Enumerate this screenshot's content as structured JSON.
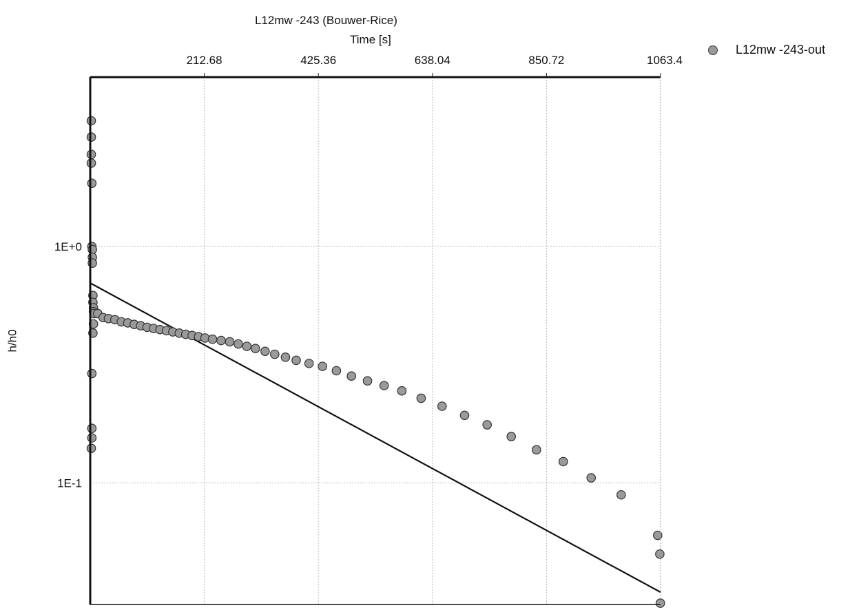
{
  "chart_data": {
    "type": "scatter",
    "title": "L12mw -243  (Bouwer-Rice)",
    "xlabel": "Time [s]",
    "ylabel": "h/h0",
    "x_scale": "linear",
    "y_scale": "log",
    "xlim": [
      0,
      1063.4
    ],
    "ylim": [
      0.0306,
      5.2
    ],
    "x_ticks": [
      212.68,
      425.36,
      638.04,
      850.72,
      1063.4
    ],
    "x_tick_labels": [
      "212.68",
      "425.36",
      "638.04",
      "850.72",
      "1063.4"
    ],
    "y_ticks": [
      1,
      0.1
    ],
    "y_tick_labels": [
      "1E+0",
      "1E-1"
    ],
    "x_axis_position": "top",
    "grid": true,
    "legend": {
      "position": "top-right"
    },
    "series": [
      {
        "name": "L12mw -243-out",
        "marker": "circle",
        "color": "#9a9a9a",
        "points": [
          [
            2,
            3.4
          ],
          [
            2,
            2.9
          ],
          [
            2,
            2.45
          ],
          [
            2,
            2.25
          ],
          [
            3,
            1.85
          ],
          [
            3,
            1.0
          ],
          [
            4,
            0.97
          ],
          [
            4,
            0.9
          ],
          [
            4,
            0.85
          ],
          [
            5,
            0.62
          ],
          [
            5,
            0.58
          ],
          [
            6,
            0.55
          ],
          [
            6,
            0.53
          ],
          [
            7,
            0.52
          ],
          [
            6,
            0.47
          ],
          [
            5,
            0.43
          ],
          [
            3,
            0.29
          ],
          [
            3,
            0.17
          ],
          [
            3,
            0.155
          ],
          [
            2,
            0.14
          ],
          [
            14,
            0.52
          ],
          [
            24,
            0.5
          ],
          [
            34,
            0.495
          ],
          [
            46,
            0.49
          ],
          [
            58,
            0.48
          ],
          [
            70,
            0.475
          ],
          [
            82,
            0.468
          ],
          [
            94,
            0.462
          ],
          [
            106,
            0.455
          ],
          [
            118,
            0.45
          ],
          [
            130,
            0.445
          ],
          [
            142,
            0.44
          ],
          [
            154,
            0.435
          ],
          [
            166,
            0.43
          ],
          [
            178,
            0.425
          ],
          [
            190,
            0.42
          ],
          [
            202,
            0.415
          ],
          [
            214,
            0.41
          ],
          [
            228,
            0.405
          ],
          [
            244,
            0.4
          ],
          [
            260,
            0.395
          ],
          [
            276,
            0.387
          ],
          [
            292,
            0.378
          ],
          [
            308,
            0.37
          ],
          [
            326,
            0.36
          ],
          [
            344,
            0.35
          ],
          [
            364,
            0.34
          ],
          [
            384,
            0.33
          ],
          [
            408,
            0.32
          ],
          [
            433,
            0.311
          ],
          [
            459,
            0.298
          ],
          [
            487,
            0.283
          ],
          [
            517,
            0.27
          ],
          [
            548,
            0.258
          ],
          [
            581,
            0.245
          ],
          [
            617,
            0.228
          ],
          [
            656,
            0.211
          ],
          [
            698,
            0.193
          ],
          [
            740,
            0.176
          ],
          [
            785,
            0.157
          ],
          [
            832,
            0.138
          ],
          [
            882,
            0.123
          ],
          [
            934,
            0.105
          ],
          [
            990,
            0.089
          ],
          [
            1058,
            0.06
          ],
          [
            1062,
            0.05
          ],
          [
            1063,
            0.031
          ]
        ]
      }
    ],
    "fit_line": {
      "points": [
        [
          0,
          0.7
        ],
        [
          1063.4,
          0.0345
        ]
      ]
    }
  }
}
